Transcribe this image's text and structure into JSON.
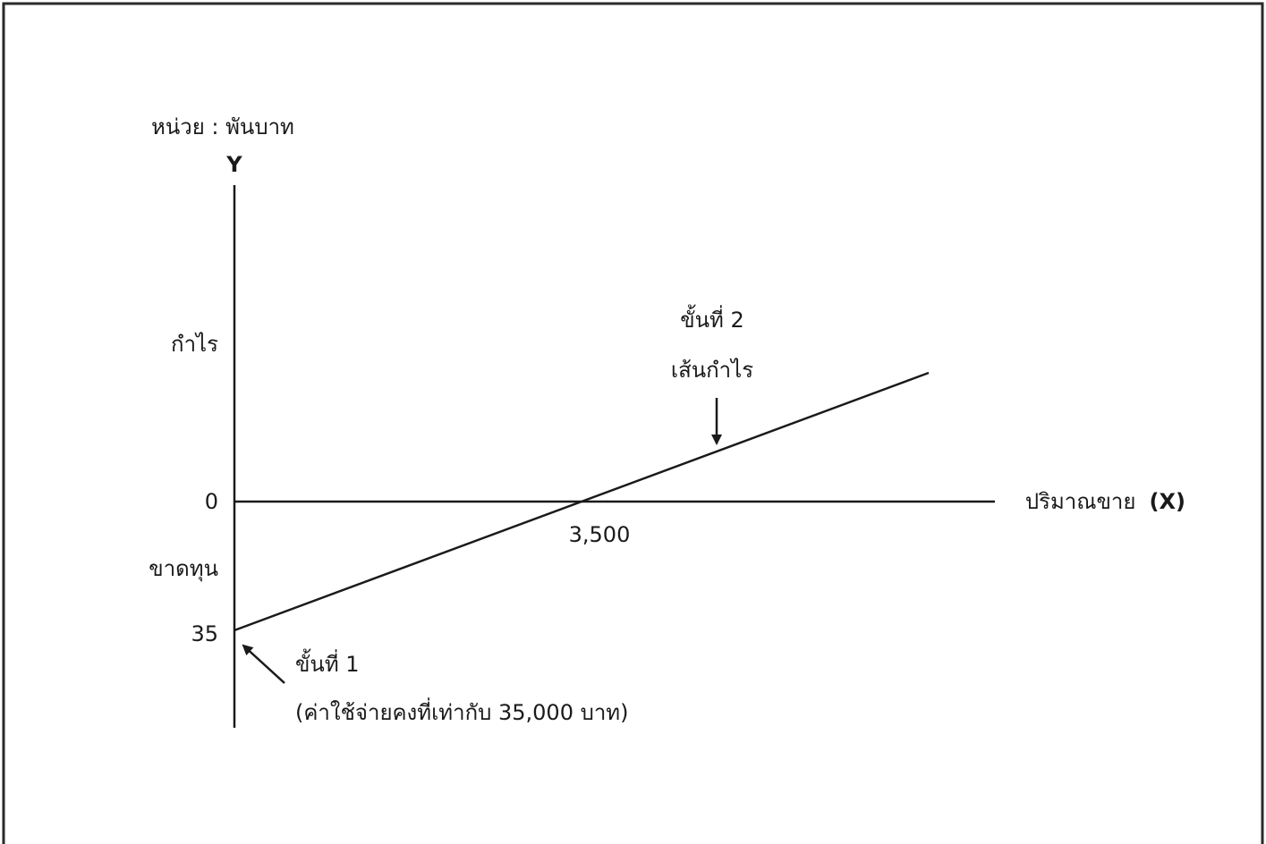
{
  "chart_data": {
    "type": "line",
    "unit_label": "หน่วย : พันบาท",
    "y_axis_letter": "Y",
    "x_axis_label": "ปริมาณขาย",
    "x_axis_letter": "(X)",
    "region_labels": {
      "profit": "กำไร",
      "loss": "ขาดทุน"
    },
    "y_tick_labels": [
      "0",
      "35"
    ],
    "x_tick_labels": [
      "3,500"
    ],
    "series": [
      {
        "name": "เส้นกำไร",
        "x": [
          0,
          3500,
          7000
        ],
        "y": [
          -35,
          0,
          35
        ]
      }
    ],
    "xlim": [
      0,
      7300
    ],
    "ylim": [
      -35,
      35
    ],
    "annotations": {
      "step2_title": "ขั้นที่ 2",
      "step2_label": "เส้นกำไร",
      "step1_title": "ขั้นที่ 1",
      "step1_label": "(ค่าใช้จ่ายคงที่เท่ากับ 35,000 บาท)"
    },
    "grid": false,
    "legend": "none"
  },
  "colors": {
    "ink": "#1a1a1a",
    "border": "#2a2a2a",
    "background": "#ffffff"
  }
}
